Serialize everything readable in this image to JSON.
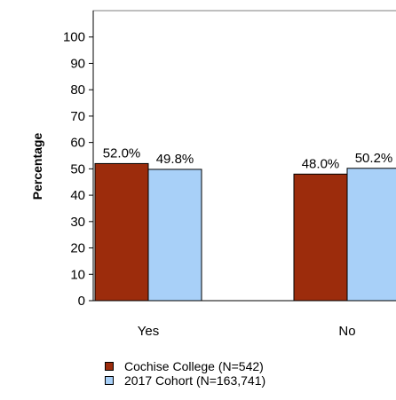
{
  "chart_data": {
    "type": "bar",
    "title": "",
    "xlabel": "",
    "ylabel": "Percentage",
    "ylim": [
      0,
      100
    ],
    "yticks": [
      0,
      10,
      20,
      30,
      40,
      50,
      60,
      70,
      80,
      90,
      100
    ],
    "categories": [
      "Yes",
      "No"
    ],
    "series": [
      {
        "name": "Cochise College (N=542)",
        "values": [
          52.0,
          48.0
        ],
        "labels": [
          "52.0%",
          "48.0%"
        ],
        "color": "#9c2c0c"
      },
      {
        "name": "2017 Cohort (N=163,741)",
        "values": [
          49.8,
          50.2
        ],
        "labels": [
          "49.8%",
          "50.2%"
        ],
        "color": "#a8d0f8"
      }
    ],
    "grid": false,
    "legend_position": "bottom"
  }
}
